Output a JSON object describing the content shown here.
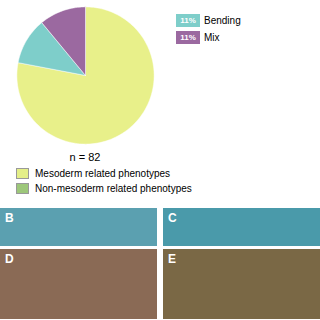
{
  "chart_data": {
    "type": "pie",
    "categories": [
      "Mesoderm related phenotypes",
      "Bending",
      "Mix"
    ],
    "values": [
      78,
      11,
      11
    ],
    "value_labels": [
      null,
      "11%",
      "11%"
    ],
    "colors": [
      "#e8f08a",
      "#7ececa",
      "#9b69a0"
    ],
    "annotations": [
      "n = 82"
    ],
    "legend_entries": [
      {
        "label": "Mesoderm related phenotypes",
        "color": "#e4ef88"
      },
      {
        "label": "Non-mesoderm related phenotypes",
        "color": "#9dc77a"
      }
    ],
    "panels": [
      {
        "label": "B",
        "color": "#5ba0b0"
      },
      {
        "label": "C",
        "color": "#4a9aaa"
      },
      {
        "label": "D",
        "color": "#8a6a55"
      },
      {
        "label": "E",
        "color": "#7a6845"
      }
    ]
  }
}
